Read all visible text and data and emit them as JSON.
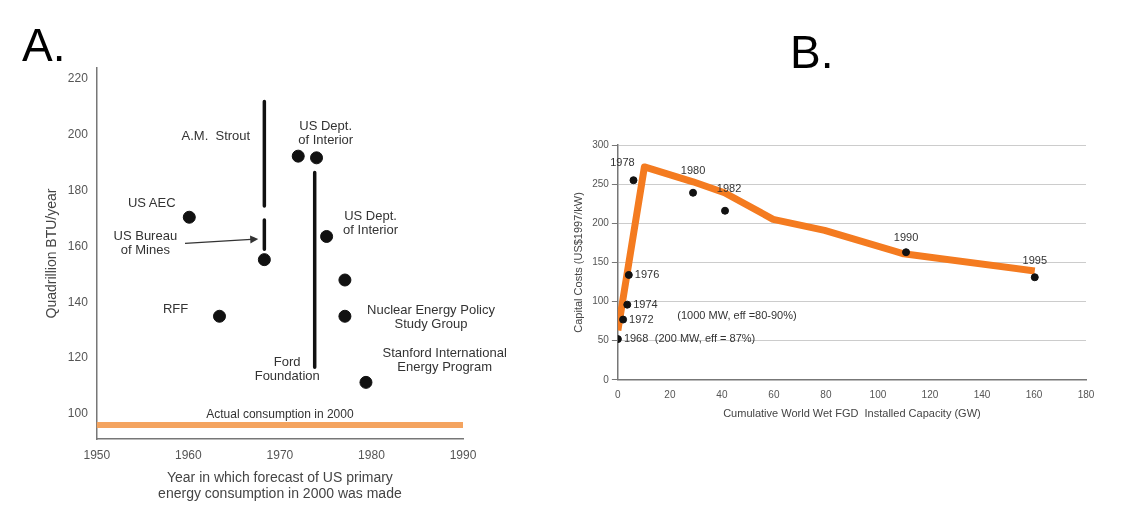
{
  "chart_data": [
    {
      "type": "scatter",
      "title": "A.",
      "xlabel": "Year in which forecast of US primary\nenergy consumption in 2000 was made",
      "ylabel": "Quadrillion BTU/year",
      "xlim": [
        1950,
        1990
      ],
      "ylim": [
        91,
        224
      ],
      "xticks": [
        1950,
        1960,
        1970,
        1980,
        1990
      ],
      "yticks": [
        100,
        120,
        140,
        160,
        180,
        200,
        220
      ],
      "marker": "circle",
      "series": [
        {
          "color": "#111111",
          "x": [
            1960.1,
            1972.0,
            1974.0,
            1968.3,
            1975.1,
            1977.1,
            1963.4,
            1977.1,
            1979.4
          ],
          "values": [
            170.5,
            192.4,
            191.8,
            155.3,
            163.6,
            148,
            135,
            135,
            111.3
          ]
        },
        {
          "type": "line",
          "marker": "none",
          "color": "#111111",
          "x": [
            1968.3,
            1968.3
          ],
          "values": [
            212,
            174.5
          ]
        },
        {
          "type": "line",
          "marker": "none",
          "color": "#111111",
          "x": [
            1968.3,
            1968.3
          ],
          "values": [
            169.5,
            159
          ]
        },
        {
          "type": "line",
          "marker": "none",
          "color": "#111111",
          "x": [
            1973.8,
            1973.8
          ],
          "values": [
            186.5,
            116.7
          ]
        }
      ],
      "ref_lines": [
        {
          "axis": "y",
          "value": 96,
          "label": "Actual consumption in 2000",
          "color": "#f4a460"
        }
      ],
      "annotations": [
        "A.M.  Strout",
        "US Dept.\nof Interior",
        "US AEC",
        "US Bureau\nof Mines",
        "US Dept.\nof Interior",
        "RFF",
        "Nuclear Energy Policy\nStudy Group",
        "Ford\nFoundation",
        "Stanford International\nEnergy Program"
      ]
    },
    {
      "type": "line",
      "title": "B.",
      "xlabel": "Cumulative World Wet FGD  Installed Capacity (GW)",
      "ylabel": "Capital Costs (US$1997/kW)",
      "xlim": [
        0,
        180
      ],
      "ylim": [
        0,
        300
      ],
      "xticks": [
        0,
        20,
        40,
        60,
        80,
        100,
        120,
        140,
        160,
        180
      ],
      "yticks": [
        0,
        50,
        100,
        150,
        200,
        250,
        300
      ],
      "grid": "y",
      "marker": "circle",
      "series": [
        {
          "marker": "none",
          "color": "#f47b20",
          "x": [
            0,
            10.2,
            28.9,
            41,
            59.7,
            79.5,
            109.9,
            160.3
          ],
          "values": [
            63,
            272,
            253,
            239,
            205,
            191,
            161,
            139
          ]
        },
        {
          "type": "scatter",
          "color": "#111111",
          "x": [
            0,
            2,
            3.6,
            4.2,
            6,
            28.9,
            41.2,
            110.8,
            160.3
          ],
          "values": [
            52,
            77,
            96,
            134,
            255,
            239,
            216,
            163,
            131
          ]
        }
      ],
      "annotations": [
        {
          "text": "1968",
          "x": 0,
          "y": 52
        },
        {
          "text": "1972",
          "x": 2,
          "y": 77
        },
        {
          "text": "1974",
          "x": 3.6,
          "y": 96
        },
        {
          "text": "1976",
          "x": 4.2,
          "y": 134
        },
        {
          "text": "1978",
          "x": 6,
          "y": 255
        },
        {
          "text": "1980",
          "x": 28.9,
          "y": 239
        },
        {
          "text": "1982",
          "x": 41.2,
          "y": 216
        },
        {
          "text": "1990",
          "x": 110.8,
          "y": 163
        },
        {
          "text": "1995",
          "x": 160.3,
          "y": 131
        },
        "(1000 MW, eff =80-90%)",
        "(200 MW, eff = 87%)"
      ]
    }
  ]
}
